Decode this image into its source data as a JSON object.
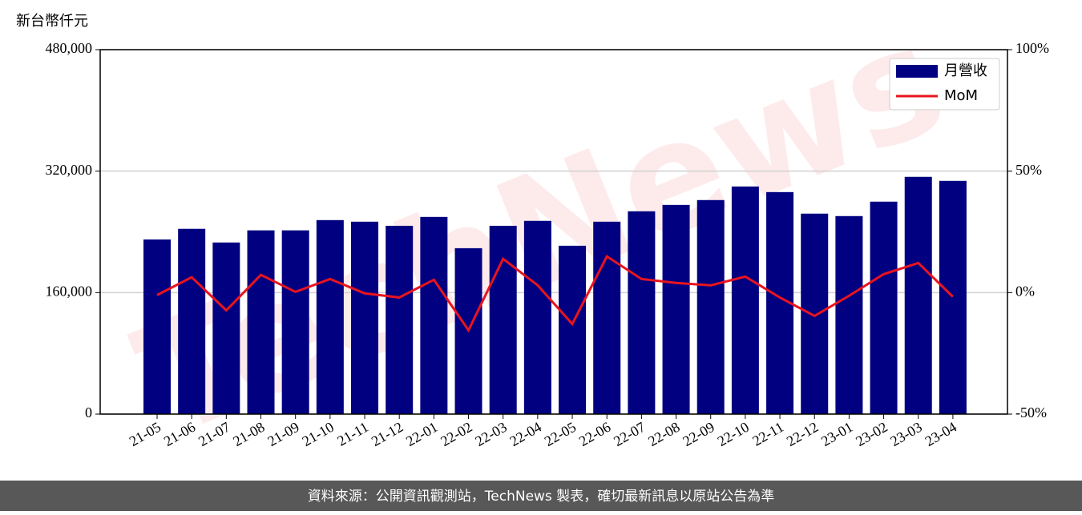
{
  "chart_data": {
    "type": "bar_line",
    "y_unit": "新台幣仟元",
    "watermark": "TechNews",
    "footer": "資料來源：公開資訊觀測站，TechNews 製表，確切最新訊息以原站公告為準",
    "categories": [
      "21-05",
      "21-06",
      "21-07",
      "21-08",
      "21-09",
      "21-10",
      "21-11",
      "21-12",
      "22-01",
      "22-02",
      "22-03",
      "22-04",
      "22-05",
      "22-06",
      "22-07",
      "22-08",
      "22-09",
      "22-10",
      "22-11",
      "22-12",
      "23-01",
      "23-02",
      "23-03",
      "23-04"
    ],
    "series": [
      {
        "name": "月營收",
        "color": "#000080",
        "type": "bar",
        "values": [
          230000,
          244000,
          226000,
          242000,
          242000,
          255500,
          253400,
          248000,
          259700,
          218500,
          248000,
          254500,
          221700,
          253400,
          267100,
          275500,
          281900,
          299800,
          292400,
          264000,
          260800,
          279800,
          312500,
          307200
        ]
      },
      {
        "name": "MoM",
        "color": "#e8141e",
        "type": "line",
        "axis": "y2",
        "values": [
          -1,
          6.3,
          -7.3,
          7.3,
          0.3,
          5.6,
          -0.3,
          -2,
          5.3,
          -15.5,
          13.9,
          3,
          -12.9,
          14.9,
          5.6,
          4,
          3,
          6.6,
          -2,
          -9.6,
          -1.3,
          7.6,
          12.2,
          -1.7
        ]
      }
    ],
    "ylim": [
      0,
      480000
    ],
    "yticks": [
      0,
      {
        "value": 160000,
        "label": "160,000"
      },
      {
        "value": 320000,
        "label": "320,000"
      },
      {
        "value": 480000,
        "label": "480,000"
      }
    ],
    "y2lim": [
      -50,
      100
    ],
    "y2ticks": [
      {
        "value": -50,
        "label": "-50%"
      },
      {
        "value": 0,
        "label": "0%"
      },
      {
        "value": 50,
        "label": "50%"
      },
      {
        "value": 100,
        "label": "100%"
      }
    ],
    "grid": true,
    "legend": "upper right"
  }
}
